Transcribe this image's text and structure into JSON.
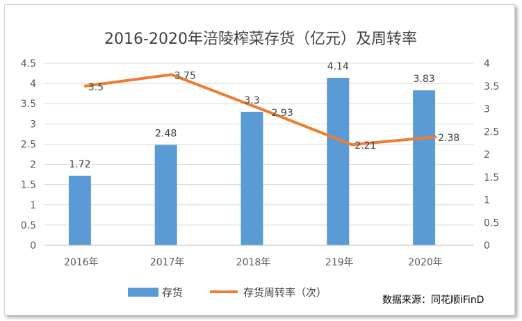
{
  "chart_data": {
    "type": "bar",
    "title": "2016-2020年涪陵榨菜存货（亿元）及周转率",
    "categories": [
      "2016年",
      "2017年",
      "2018年",
      "219年",
      "2020年"
    ],
    "series": [
      {
        "name": "存货",
        "type": "bar",
        "axis": "left",
        "color": "#5b9bd5",
        "values": [
          1.72,
          2.48,
          3.3,
          4.14,
          3.83
        ]
      },
      {
        "name": "存货周转率（次）",
        "type": "line",
        "axis": "right",
        "color": "#ed7d31",
        "values": [
          3.5,
          3.75,
          2.93,
          2.21,
          2.38
        ]
      }
    ],
    "y_left": {
      "min": 0,
      "max": 4.5,
      "ticks": [
        "0",
        "0.5",
        "1",
        "1.5",
        "2",
        "2.5",
        "3",
        "3.5",
        "4",
        "4.5"
      ]
    },
    "y_right": {
      "min": 0,
      "max": 4,
      "ticks": [
        "0",
        "0.5",
        "1",
        "1.5",
        "2",
        "2.5",
        "3",
        "3.5",
        "4"
      ]
    },
    "gridlines": true,
    "legend_position": "bottom",
    "source_note": "数据来源：同花顺iFinD"
  }
}
